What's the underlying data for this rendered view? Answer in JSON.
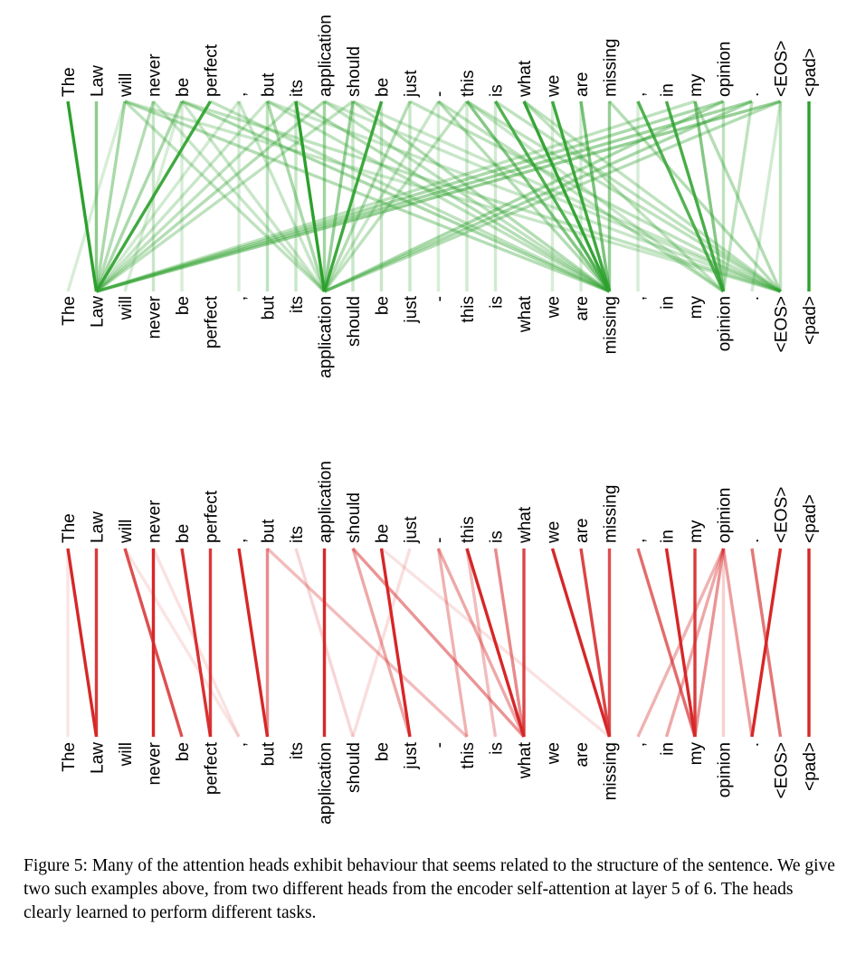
{
  "tokens": [
    "The",
    "Law",
    "will",
    "never",
    "be",
    "perfect",
    ",",
    "but",
    "its",
    "application",
    "should",
    "be",
    "just",
    "-",
    "this",
    "is",
    "what",
    "we",
    "are",
    "missing",
    ",",
    "in",
    "my",
    "opinion",
    ".",
    "<EOS>",
    "<pad>"
  ],
  "colors": {
    "green": "#2ca02c",
    "red": "#d62728"
  },
  "panels": [
    {
      "name": "green-head",
      "color": "#2ca02c",
      "edges": [
        [
          0,
          1,
          1.0
        ],
        [
          1,
          1,
          0.5
        ],
        [
          2,
          1,
          0.35
        ],
        [
          3,
          1,
          0.3
        ],
        [
          4,
          1,
          0.35
        ],
        [
          5,
          1,
          0.9
        ],
        [
          6,
          1,
          0.15
        ],
        [
          7,
          1,
          0.2
        ],
        [
          8,
          1,
          0.25
        ],
        [
          9,
          1,
          0.3
        ],
        [
          10,
          1,
          0.25
        ],
        [
          22,
          1,
          0.25
        ],
        [
          23,
          1,
          0.35
        ],
        [
          24,
          1,
          0.4
        ],
        [
          25,
          1,
          0.45
        ],
        [
          2,
          9,
          0.25
        ],
        [
          3,
          9,
          0.2
        ],
        [
          4,
          9,
          0.2
        ],
        [
          6,
          9,
          0.2
        ],
        [
          7,
          9,
          0.35
        ],
        [
          8,
          9,
          1.0
        ],
        [
          9,
          9,
          0.4
        ],
        [
          10,
          9,
          0.45
        ],
        [
          11,
          9,
          0.9
        ],
        [
          12,
          9,
          0.3
        ],
        [
          13,
          9,
          0.2
        ],
        [
          14,
          9,
          0.25
        ],
        [
          23,
          9,
          0.35
        ],
        [
          24,
          9,
          0.35
        ],
        [
          25,
          9,
          0.3
        ],
        [
          2,
          19,
          0.3
        ],
        [
          4,
          19,
          0.35
        ],
        [
          5,
          19,
          0.25
        ],
        [
          7,
          19,
          0.25
        ],
        [
          8,
          19,
          0.3
        ],
        [
          9,
          19,
          0.25
        ],
        [
          10,
          19,
          0.3
        ],
        [
          13,
          19,
          0.3
        ],
        [
          14,
          19,
          0.55
        ],
        [
          15,
          19,
          0.8
        ],
        [
          16,
          19,
          0.95
        ],
        [
          17,
          19,
          0.9
        ],
        [
          18,
          19,
          0.6
        ],
        [
          19,
          19,
          0.3
        ],
        [
          13,
          23,
          0.25
        ],
        [
          14,
          23,
          0.2
        ],
        [
          16,
          23,
          0.25
        ],
        [
          20,
          23,
          0.8
        ],
        [
          21,
          23,
          0.85
        ],
        [
          22,
          23,
          0.55
        ],
        [
          23,
          23,
          0.25
        ],
        [
          24,
          23,
          0.25
        ],
        [
          2,
          25,
          0.2
        ],
        [
          4,
          25,
          0.25
        ],
        [
          7,
          25,
          0.2
        ],
        [
          9,
          25,
          0.2
        ],
        [
          10,
          25,
          0.2
        ],
        [
          12,
          25,
          0.25
        ],
        [
          14,
          25,
          0.25
        ],
        [
          15,
          25,
          0.25
        ],
        [
          16,
          25,
          0.25
        ],
        [
          19,
          25,
          0.3
        ],
        [
          22,
          25,
          0.3
        ],
        [
          25,
          25,
          0.25
        ],
        [
          2,
          0,
          0.12
        ],
        [
          4,
          2,
          0.12
        ],
        [
          3,
          3,
          0.2
        ],
        [
          4,
          4,
          0.12
        ],
        [
          6,
          6,
          0.12
        ],
        [
          7,
          7,
          0.25
        ],
        [
          8,
          8,
          0.2
        ],
        [
          10,
          10,
          0.2
        ],
        [
          11,
          11,
          0.2
        ],
        [
          12,
          12,
          0.2
        ],
        [
          13,
          13,
          0.12
        ],
        [
          14,
          14,
          0.15
        ],
        [
          15,
          15,
          0.15
        ],
        [
          17,
          17,
          0.12
        ],
        [
          18,
          18,
          0.12
        ],
        [
          19,
          19,
          0.15
        ],
        [
          20,
          20,
          0.12
        ],
        [
          25,
          24,
          0.15
        ],
        [
          26,
          26,
          1.0
        ]
      ]
    },
    {
      "name": "red-head",
      "color": "#d62728",
      "edges": [
        [
          0,
          1,
          1.0
        ],
        [
          1,
          1,
          0.9
        ],
        [
          2,
          4,
          0.8
        ],
        [
          3,
          3,
          1.0
        ],
        [
          4,
          5,
          0.95
        ],
        [
          5,
          5,
          0.9
        ],
        [
          6,
          7,
          1.0
        ],
        [
          7,
          7,
          0.5
        ],
        [
          7,
          14,
          0.25
        ],
        [
          8,
          10,
          0.12
        ],
        [
          9,
          9,
          1.0
        ],
        [
          10,
          12,
          0.35
        ],
        [
          10,
          16,
          0.45
        ],
        [
          11,
          12,
          1.0
        ],
        [
          13,
          16,
          0.35
        ],
        [
          14,
          16,
          1.0
        ],
        [
          15,
          16,
          0.5
        ],
        [
          16,
          16,
          0.85
        ],
        [
          13,
          14,
          0.3
        ],
        [
          14,
          15,
          0.25
        ],
        [
          17,
          19,
          1.0
        ],
        [
          18,
          19,
          0.85
        ],
        [
          19,
          19,
          0.8
        ],
        [
          20,
          22,
          0.65
        ],
        [
          21,
          22,
          1.0
        ],
        [
          22,
          22,
          0.9
        ],
        [
          23,
          20,
          0.3
        ],
        [
          23,
          21,
          0.35
        ],
        [
          23,
          22,
          0.45
        ],
        [
          23,
          24,
          0.4
        ],
        [
          23,
          23,
          0.15
        ],
        [
          24,
          25,
          0.6
        ],
        [
          25,
          24,
          1.0
        ],
        [
          26,
          26,
          1.0
        ],
        [
          3,
          6,
          0.06
        ],
        [
          2,
          6,
          0.05
        ],
        [
          12,
          10,
          0.08
        ],
        [
          11,
          19,
          0.06
        ],
        [
          0,
          0,
          0.05
        ]
      ]
    }
  ],
  "caption": "Figure 5: Many of the attention heads exhibit behaviour that seems related to the structure of the sentence. We give two such examples above, from two different heads from the encoder self-attention at layer 5 of 6. The heads clearly learned to perform different tasks."
}
